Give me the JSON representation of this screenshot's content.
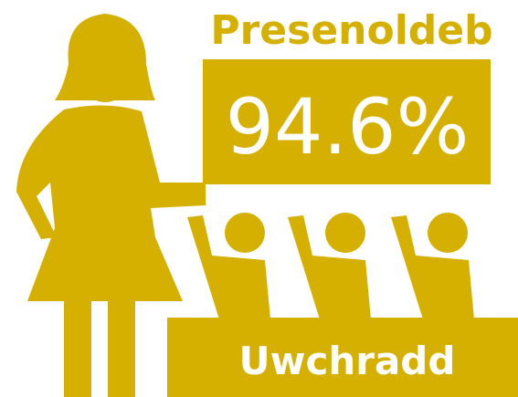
{
  "title": "Presenoldeb",
  "value": "94.6%",
  "label": "Uwchradd"
}
